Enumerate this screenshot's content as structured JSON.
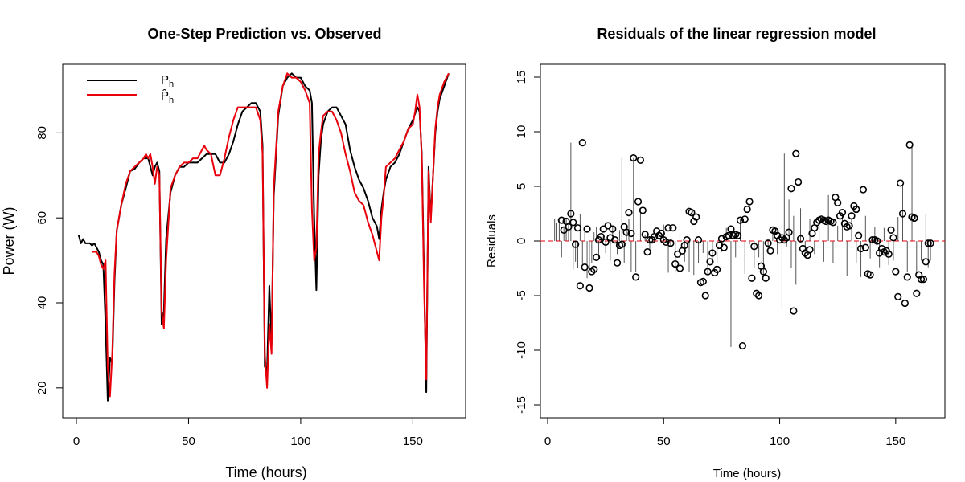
{
  "chart_data": [
    {
      "type": "line",
      "title": "One-Step Prediction vs. Observed",
      "xlabel": "Time (hours)",
      "ylabel": "Power (W)",
      "xlim": [
        0,
        168
      ],
      "ylim": [
        16,
        95
      ],
      "xticks": [
        0,
        50,
        100,
        150
      ],
      "yticks": [
        20,
        40,
        60,
        80
      ],
      "legend_position": "top-left",
      "series": [
        {
          "name": "P_h",
          "legend_main": "P",
          "legend_sub": "h",
          "color": "#000000",
          "x": [
            1,
            2,
            3,
            4,
            5,
            6,
            7,
            8,
            9,
            10,
            11,
            12,
            13,
            14,
            15,
            16,
            17,
            18,
            20,
            22,
            24,
            26,
            28,
            30,
            32,
            34,
            35,
            36,
            37,
            38,
            39,
            40,
            42,
            44,
            46,
            48,
            50,
            52,
            54,
            56,
            58,
            60,
            62,
            64,
            66,
            68,
            70,
            72,
            74,
            76,
            78,
            80,
            82,
            83,
            84,
            85,
            86,
            87,
            88,
            90,
            92,
            94,
            96,
            98,
            100,
            102,
            104,
            105,
            106,
            107,
            108,
            109,
            110,
            112,
            114,
            116,
            118,
            120,
            122,
            124,
            126,
            128,
            130,
            132,
            134,
            135,
            136,
            137,
            138,
            140,
            142,
            144,
            146,
            148,
            150,
            152,
            153,
            154,
            155,
            156,
            157,
            158,
            159,
            160,
            161,
            162,
            164,
            166
          ],
          "y": [
            56,
            54,
            55,
            54,
            54,
            54,
            53.5,
            54,
            53,
            52,
            50,
            49,
            35,
            17,
            27,
            26,
            45,
            57,
            63,
            67,
            71,
            71.5,
            73,
            74,
            74,
            70,
            72,
            73,
            71,
            35,
            38,
            55,
            66,
            70,
            72,
            72,
            73,
            73,
            73,
            74,
            75,
            75,
            75,
            73,
            73,
            75,
            78,
            82,
            85,
            86,
            87,
            87,
            85,
            77,
            25,
            24,
            44,
            30,
            65,
            84,
            91,
            93,
            94,
            93,
            93,
            91,
            90,
            87,
            60,
            43,
            70,
            78,
            82,
            85,
            86,
            86,
            84,
            82,
            76,
            72,
            69,
            67,
            64,
            60,
            58,
            55,
            62,
            66,
            69,
            72,
            73,
            75,
            78,
            81,
            83,
            86,
            85,
            75,
            47,
            19,
            72,
            60,
            70,
            80,
            85,
            88,
            91,
            94
          ]
        },
        {
          "name": "P̂_h",
          "legend_main": "P̂",
          "legend_sub": "h",
          "color": "#e8000b",
          "x": [
            7,
            8,
            9,
            10,
            11,
            12,
            13,
            14,
            15,
            16,
            17,
            18,
            20,
            22,
            24,
            26,
            28,
            30,
            31,
            32,
            33,
            34,
            35,
            36,
            37,
            38,
            39,
            40,
            42,
            44,
            46,
            48,
            50,
            52,
            54,
            56,
            57,
            58,
            60,
            62,
            64,
            66,
            68,
            70,
            72,
            74,
            76,
            78,
            80,
            82,
            83,
            84,
            85,
            86,
            87,
            88,
            90,
            92,
            94,
            96,
            98,
            100,
            102,
            104,
            105,
            106,
            107,
            108,
            109,
            110,
            112,
            114,
            116,
            118,
            120,
            122,
            124,
            126,
            128,
            130,
            132,
            134,
            135,
            136,
            137,
            138,
            140,
            142,
            144,
            146,
            148,
            150,
            151,
            152,
            153,
            154,
            155,
            156,
            157,
            158,
            159,
            160,
            161,
            162,
            164,
            166
          ],
          "y": [
            52,
            52,
            52,
            51,
            49,
            48,
            50,
            25,
            18,
            28,
            47,
            57,
            63,
            68,
            71,
            72,
            73,
            74,
            75,
            74,
            75,
            72,
            68,
            72,
            70,
            38,
            34,
            50,
            67,
            70,
            72,
            73,
            73,
            74,
            74,
            76,
            77,
            76,
            75,
            70,
            70,
            74,
            79,
            83,
            86,
            86,
            86,
            86,
            86,
            83,
            75,
            28,
            20,
            35,
            28,
            67,
            85,
            91,
            94,
            93,
            93,
            92,
            90,
            87,
            62,
            50,
            53,
            75,
            80,
            84,
            85,
            85,
            83,
            80,
            75,
            71,
            66,
            64,
            63,
            59,
            56,
            52,
            50,
            60,
            65,
            72,
            73,
            74,
            76,
            78,
            81,
            82,
            85,
            89,
            86,
            74,
            44,
            22,
            71,
            59,
            70,
            81,
            86,
            89,
            92,
            94
          ]
        }
      ]
    },
    {
      "type": "scatter",
      "title": "Residuals of the linear regression model",
      "xlabel": "Time (hours)",
      "ylabel": "Residuals",
      "xlim": [
        0,
        168
      ],
      "ylim": [
        -16,
        16
      ],
      "xticks": [
        0,
        50,
        100,
        150
      ],
      "yticks": [
        -15,
        -10,
        -5,
        0,
        5,
        10,
        15
      ],
      "reference_line": {
        "y": 0,
        "color": "#e8000b",
        "style": "dashed"
      },
      "point_color": "#000000",
      "spike_color": "#555555",
      "points": {
        "x": [
          6,
          7,
          8,
          9,
          10,
          11,
          12,
          13,
          14,
          15,
          16,
          17,
          18,
          19,
          20,
          21,
          22,
          23,
          24,
          25,
          26,
          27,
          28,
          29,
          30,
          31,
          32,
          33,
          34,
          35,
          36,
          37,
          38,
          39,
          40,
          41,
          42,
          43,
          44,
          45,
          46,
          47,
          48,
          49,
          50,
          51,
          52,
          53,
          54,
          55,
          56,
          57,
          58,
          59,
          60,
          61,
          62,
          63,
          64,
          65,
          66,
          67,
          68,
          69,
          70,
          71,
          72,
          73,
          74,
          75,
          76,
          77,
          78,
          79,
          80,
          81,
          82,
          83,
          84,
          85,
          86,
          87,
          88,
          89,
          90,
          91,
          92,
          93,
          94,
          95,
          96,
          97,
          98,
          99,
          100,
          101,
          102,
          103,
          104,
          105,
          106,
          107,
          108,
          109,
          110,
          111,
          112,
          113,
          114,
          115,
          116,
          117,
          118,
          119,
          120,
          121,
          122,
          123,
          124,
          125,
          126,
          127,
          128,
          129,
          130,
          131,
          132,
          133,
          134,
          135,
          136,
          137,
          138,
          139,
          140,
          141,
          142,
          143,
          144,
          145,
          146,
          147,
          148,
          149,
          150,
          151,
          152,
          153,
          154,
          155,
          156,
          157,
          158,
          159,
          160,
          161,
          162,
          163,
          164,
          165
        ],
        "y": [
          1.9,
          1,
          1.8,
          1.3,
          2.5,
          1.7,
          -0.3,
          1.2,
          -4.1,
          9,
          -2.4,
          1.1,
          -4.3,
          -2.8,
          -2.6,
          -1.5,
          0.1,
          0.4,
          1.1,
          -0.1,
          1.4,
          0.3,
          1.1,
          0.1,
          -2,
          -0.4,
          -0.3,
          1.3,
          0.8,
          2.6,
          0.7,
          7.6,
          -3.3,
          3.6,
          7.4,
          2.8,
          0.6,
          -1,
          0.1,
          0.1,
          0.4,
          0.9,
          0.5,
          0.7,
          0.1,
          -0.1,
          1.2,
          -0.2,
          1.2,
          -2.1,
          -1.2,
          -2.5,
          -0.9,
          -0.4,
          0.1,
          2.7,
          2.6,
          1.8,
          2.2,
          0.1,
          -3.8,
          -3.7,
          -5,
          -2.8,
          -1.9,
          -1.1,
          -2.9,
          -2.6,
          -0.4,
          0.2,
          -0.6,
          0.4,
          0.5,
          1.1,
          0.5,
          0.6,
          0.5,
          1.9,
          -9.6,
          2,
          2.9,
          3.6,
          -3.4,
          -0.5,
          -4.8,
          -5,
          -2.3,
          -2.8,
          -3.4,
          -0.2,
          -0.9,
          1,
          0.9,
          0.5,
          0.1,
          0.3,
          0.1,
          0.3,
          0.8,
          4.8,
          -6.4,
          8,
          5.4,
          0.2,
          -0.7,
          -1.1,
          -1.3,
          -0.8,
          0.7,
          1.2,
          1.7,
          1.9,
          2,
          1.9,
          1.8,
          1.9,
          1.8,
          1.7,
          4,
          3.5,
          2.3,
          2.6,
          1.6,
          1.3,
          1.4,
          2.3,
          3.2,
          2.9,
          0.5,
          -0.7,
          4.7,
          -0.6,
          -3,
          -3.1,
          0.1,
          0.1,
          0,
          -1.1,
          -0.7,
          -1,
          -0.9,
          -1.2,
          1,
          0.3,
          -2.8,
          -5.1,
          5.3,
          2.5,
          -5.7,
          -3.3,
          8.8,
          2.2,
          2.1,
          -4.8,
          -3.1,
          -3.5,
          -3.5,
          -1.9,
          -0.2,
          -0.2
        ]
      },
      "spikes": {
        "x": [
          3,
          4,
          5,
          6,
          7,
          8,
          9,
          10,
          11,
          12,
          13,
          14,
          15,
          16,
          17,
          18,
          19,
          20,
          21,
          22,
          24,
          25,
          27,
          28,
          30,
          31,
          32,
          33,
          34,
          35,
          36,
          37,
          38,
          40,
          42,
          44,
          46,
          48,
          50,
          52,
          53,
          55,
          57,
          59,
          61,
          63,
          65,
          67,
          69,
          71,
          73,
          75,
          77,
          79,
          81,
          83,
          85,
          87,
          89,
          91,
          93,
          95,
          97,
          99,
          101,
          102,
          103,
          104,
          105,
          106,
          107,
          109,
          111,
          113,
          115,
          117,
          119,
          121,
          123,
          125,
          127,
          129,
          131,
          133,
          135,
          137,
          139,
          141,
          143,
          145,
          147,
          149,
          151,
          153,
          155,
          157,
          159,
          161,
          163,
          164,
          165
        ],
        "y": [
          2,
          1.7,
          2,
          -1.5,
          1.2,
          2,
          1.5,
          9,
          -2.6,
          -1.9,
          -2.5,
          2.5,
          -2.2,
          1.1,
          -3.4,
          -2.7,
          -2,
          0.8,
          1.3,
          -1.7,
          0.5,
          -1.1,
          -1.8,
          1.4,
          -1.2,
          1,
          7.6,
          -2,
          1.4,
          2,
          -2.8,
          7.6,
          -2.8,
          3,
          0.6,
          -0.8,
          0.4,
          -1.1,
          1.5,
          -2.9,
          -0.5,
          -2.9,
          1.7,
          -1.9,
          -2.8,
          -3.1,
          -2,
          -1.1,
          -3,
          -2.2,
          -2,
          -1,
          1.2,
          -9.7,
          -1.5,
          2,
          -3,
          -0.3,
          -2.5,
          -1.5,
          -3.3,
          -1,
          1,
          -1.2,
          -6.3,
          8,
          -0.5,
          3.8,
          -2.5,
          2.3,
          -4,
          3,
          -1,
          2,
          -1.2,
          1.4,
          -1.9,
          4.2,
          -2,
          1.4,
          2.5,
          -3.2,
          2.1,
          -2,
          -3.3,
          2.3,
          -1.6,
          1.3,
          -2.4,
          1.2,
          -2.2,
          -1.8,
          2.2,
          5.2,
          -2.8,
          8.8,
          -3,
          -1.8,
          2.5,
          -2.4,
          -1.8
        ]
      }
    }
  ]
}
